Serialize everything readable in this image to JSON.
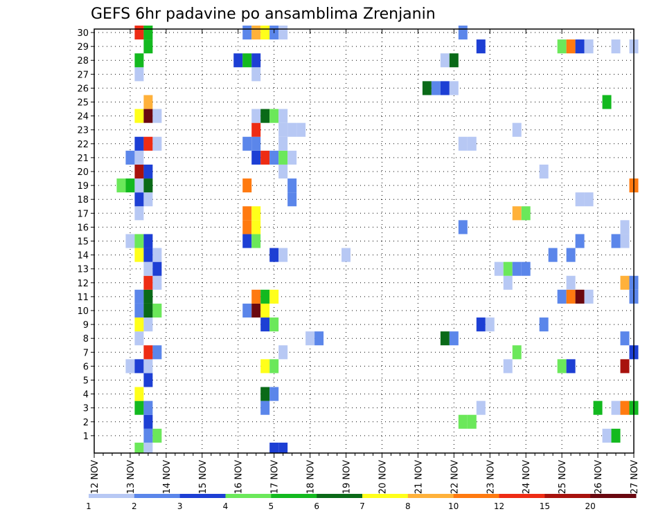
{
  "chart_data": {
    "type": "heatmap",
    "title": "GEFS 6hr padavine po ansamblima Zrenjanin",
    "x_tick_labels": [
      "12 NOV",
      "13 NOV",
      "14 NOV",
      "15 NOV",
      "16 NOV",
      "17 NOV",
      "18 NOV",
      "19 NOV",
      "20 NOV",
      "21 NOV",
      "22 NOV",
      "23 NOV",
      "24 NOV",
      "25 NOV",
      "26 NOV",
      "27 NOV"
    ],
    "x_range_days": [
      12,
      27
    ],
    "y_tick_labels": [
      "1",
      "2",
      "3",
      "4",
      "5",
      "6",
      "7",
      "8",
      "9",
      "10",
      "11",
      "12",
      "13",
      "14",
      "15",
      "16",
      "17",
      "18",
      "19",
      "20",
      "21",
      "22",
      "23",
      "24",
      "25",
      "26",
      "27",
      "28",
      "29",
      "30"
    ],
    "y_range": [
      0,
      30
    ],
    "grid": true,
    "grid_style": "dotted",
    "colorbar": {
      "position": "bottom",
      "labels": [
        "1",
        "2",
        "3",
        "4",
        "5",
        "6",
        "7",
        "8",
        "10",
        "12",
        "15",
        "20"
      ],
      "colors": [
        "#b7c8f4",
        "#5b86ea",
        "#1d3fd4",
        "#6be85a",
        "#13b91f",
        "#0a6a18",
        "#ffff1a",
        "#ffb13a",
        "#ff7a10",
        "#ee2c14",
        "#a8120d",
        "#6a0810"
      ]
    },
    "color_classes": {
      "L": "#b7c8f4",
      "B": "#5b86ea",
      "D": "#1d3fd4",
      "G": "#6be85a",
      "M": "#13b91f",
      "K": "#0a6a18",
      "Y": "#ffff1a",
      "O": "#ffb13a",
      "N": "#ff7a10",
      "R": "#ee2c14",
      "C": "#a8120d",
      "X": "#6a0810"
    },
    "column_times_hours_from_12nov_00z": [
      54,
      60,
      72,
      78,
      96,
      102,
      108,
      114,
      120,
      126,
      138,
      144,
      174,
      180,
      204,
      210,
      216,
      222,
      228,
      234,
      240,
      246,
      258,
      264,
      270,
      276,
      282,
      288,
      294,
      300,
      306,
      312,
      318,
      324,
      330,
      336,
      342,
      348,
      354,
      360
    ],
    "rows_by_member": {
      "30": "R30:M36:B102:O108:Y114:B120:L126:B246",
      "29": "M36:D258:G312:N318:D324:L330:L348:L360",
      "28": "M30:D96:M102:D108:L234:K240",
      "27": "L30:L108",
      "26": "K222:B228:D234:L240",
      "25": "O36:M342",
      "24": "Y30:X36:L42:L108:K114:G120:L126",
      "23": "R108:L126:L132:L138:L282",
      "22": "D30:R36:L42:B102:B108:L126:L246:L252",
      "21": "B24:L30:D108:R114:B120:G126:L132",
      "20": "C30:D36:L126:L300",
      "19": "G18:M24:L30:K36:N102:B132:N360",
      "18": "D30:L36:B132:L324:L330",
      "17": "L30:N102:Y108:O282:G288",
      "16": "N102:Y108:B246:L354",
      "15": "L24:G30:D36:D102:G108:B324:B348:L354",
      "14": "Y30:D36:L42:D120:L126:L168:B306:B318",
      "13": "L36:D42:L270:G276:B282:B288",
      "12": "R36:L42:L276:L318:O354:B360",
      "11": "B30:K36:N108:M114:Y120:B312:N318:X324:L330:B360",
      "10": "B30:K36:G42:B102:X108:Y114",
      "9": "Y30:L36:D114:G120:D258:L264:B300",
      "8": "L30:L144:B150:K234:B240:B354",
      "7": "R36:B42:L126:G282:D360",
      "6": "L24:D30:L36:Y114:G120:L276:G312:D318:C354",
      "5": "D36",
      "4": "Y30:K114:B120",
      "3": "M30:B36:B114:L258:M336:L348:N354:M360",
      "2": "D36:G246:G252",
      "1": "B36:G42:L342:M348",
      "0": "G30:L36:D120:D126"
    }
  }
}
